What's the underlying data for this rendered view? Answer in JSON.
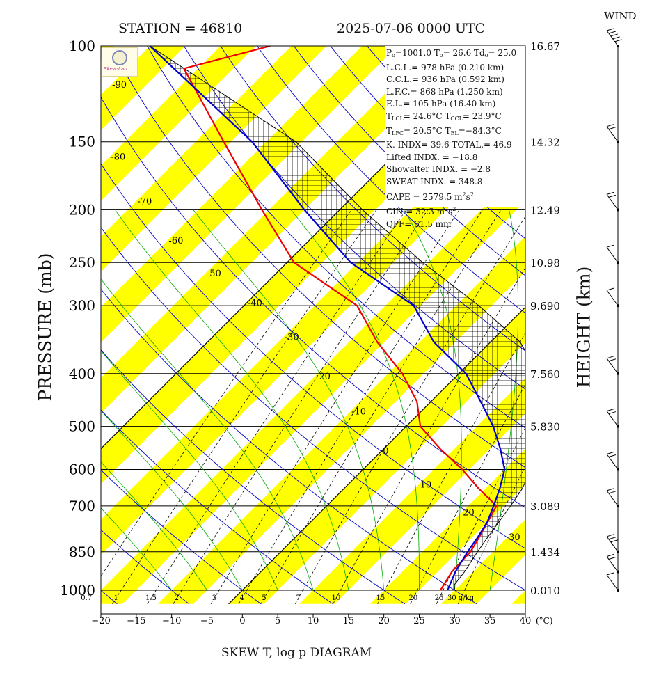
{
  "header": {
    "station": "STATION = 46810",
    "datetime": "2025-07-06 0000 UTC",
    "wind_title": "WIND"
  },
  "footer": "SKEW T, log p DIAGRAM",
  "logo": {
    "text": "Skew-Lab"
  },
  "parameters": {
    "p0": "P",
    "p0_sub": "o",
    "p0_rest": "=1001.0 T",
    "t0_sub": "o",
    "t0_rest": "= 26.6 Td",
    "td0_sub": "o",
    "td0_rest": "= 25.0",
    "lcl": "L.C.L.= 978 hPa (0.210 km)",
    "ccl": "C.C.L.= 936 hPa (0.592 km)",
    "lfc": "L.F.C.= 868 hPa (1.250 km)",
    "el": "E.L.= 105 hPa (16.40 km)",
    "tlcl_a": "T",
    "tlcl_sub": "LCL",
    "tlcl_b": "= 24.6°C T",
    "tccl_sub": "CCL",
    "tccl_b": "= 23.9°C",
    "tlfc_a": "T",
    "tlfc_sub": "LFC",
    "tlfc_b": "= 20.5°C T",
    "tel_sub": "EL",
    "tel_b": "=−84.3°C",
    "kindex": "K. INDX= 39.6 TOTAL.= 46.9",
    "lifted": "Lifted INDX. = −18.8",
    "showalter": "Showalter INDX. = −2.8",
    "sweat": "SWEAT INDX. = 348.8",
    "cape_a": "CAPE = 2579.5 m",
    "cape_sup1": "2",
    "cape_b": "s",
    "cape_sup2": "2",
    "cin_a": "CIN = 32.3 m",
    "cin_sup1": "2",
    "cin_b": "s",
    "cin_sup2": "2",
    "qpf": "QPF= 61.5 mm"
  },
  "colors": {
    "isotherm_band": "#ffff00",
    "dry_adiabat": "#0000cc",
    "moist_adiabat": "#00aa00",
    "mixing_ratio": "#000000",
    "temperature": "#ee0000",
    "dewpoint": "#0000cc",
    "parcel": "#0000cc"
  },
  "chart_data": {
    "type": "line",
    "xlabel": "(°C)",
    "ylabel_left": "PRESSURE (mb)",
    "ylabel_right": "HEIGHT (km)",
    "x_ticks": [
      -20,
      -15,
      -10,
      -5,
      0,
      5,
      10,
      15,
      20,
      25,
      30,
      35,
      40
    ],
    "pressure_levels": [
      100,
      150,
      200,
      250,
      300,
      400,
      500,
      600,
      700,
      850,
      1000
    ],
    "height_labels": [
      "16.67",
      "14.32",
      "12.49",
      "10.98",
      "9.690",
      "7.560",
      "5.830",
      "",
      "3.089",
      "1.434",
      "0.010"
    ],
    "plim": [
      1050,
      100
    ],
    "xlim": [
      -20,
      40
    ],
    "mixing_ratio_labels": [
      "0.7",
      "1",
      "1.5",
      "2",
      "3",
      "4",
      "5",
      "7",
      "10",
      "15",
      "20",
      "25",
      "30 g/kg"
    ],
    "mixing_ratio_values": [
      0.7,
      1,
      1.5,
      2,
      3,
      4,
      5,
      7,
      10,
      15,
      20,
      25,
      30
    ],
    "isotherm_labels": [
      -90,
      -80,
      -70,
      -60,
      -50,
      -40,
      -30,
      -20,
      -10,
      0,
      10,
      20,
      30
    ],
    "series": [
      {
        "name": "temperature",
        "points": [
          [
            1000,
            28.0
          ],
          [
            925,
            27.0
          ],
          [
            850,
            26.8
          ],
          [
            800,
            26.0
          ],
          [
            700,
            24.0
          ],
          [
            650,
            19.0
          ],
          [
            600,
            14.0
          ],
          [
            550,
            8.0
          ],
          [
            500,
            2.0
          ],
          [
            450,
            -2.0
          ],
          [
            400,
            -8.0
          ],
          [
            350,
            -16.0
          ],
          [
            300,
            -24.0
          ],
          [
            250,
            -39.0
          ],
          [
            200,
            -51.0
          ],
          [
            150,
            -66.0
          ],
          [
            110,
            -82.0
          ],
          [
            100,
            -73.0
          ]
        ]
      },
      {
        "name": "dewpoint",
        "points": [
          [
            1000,
            29.0
          ],
          [
            925,
            27.5
          ],
          [
            850,
            26.4
          ],
          [
            800,
            25.8
          ],
          [
            750,
            25.0
          ],
          [
            700,
            23.6
          ],
          [
            650,
            22.0
          ],
          [
            600,
            20.0
          ],
          [
            550,
            16.5
          ],
          [
            500,
            12.3
          ],
          [
            450,
            7.0
          ],
          [
            400,
            1.0
          ],
          [
            350,
            -8.0
          ],
          [
            300,
            -16.0
          ],
          [
            250,
            -31.0
          ],
          [
            200,
            -45.0
          ],
          [
            150,
            -62.0
          ],
          [
            100,
            -90.0
          ],
          [
            105,
            -84.3
          ]
        ]
      },
      {
        "name": "parcel",
        "points": [
          [
            1000,
            30.0
          ],
          [
            978,
            29.2
          ],
          [
            925,
            28.8
          ],
          [
            850,
            27.8
          ],
          [
            800,
            27.2
          ],
          [
            700,
            26.0
          ],
          [
            650,
            25.2
          ],
          [
            600,
            23.7
          ],
          [
            500,
            19.2
          ],
          [
            400,
            11.2
          ],
          [
            350,
            4.2
          ],
          [
            300,
            -6.8
          ],
          [
            250,
            -20.8
          ],
          [
            200,
            -36.8
          ],
          [
            150,
            -55.8
          ],
          [
            100,
            -90.0
          ]
        ]
      }
    ],
    "wind": [
      {
        "p": 1000,
        "barbs": 1
      },
      {
        "p": 925,
        "barbs": 2
      },
      {
        "p": 850,
        "barbs": 3
      },
      {
        "p": 700,
        "barbs": 2
      },
      {
        "p": 600,
        "barbs": 2
      },
      {
        "p": 500,
        "barbs": 2
      },
      {
        "p": 400,
        "barbs": 2
      },
      {
        "p": 300,
        "barbs": 1
      },
      {
        "p": 250,
        "barbs": 1
      },
      {
        "p": 200,
        "barbs": 2
      },
      {
        "p": 150,
        "barbs": 2
      },
      {
        "p": 100,
        "barbs": 5
      }
    ]
  }
}
